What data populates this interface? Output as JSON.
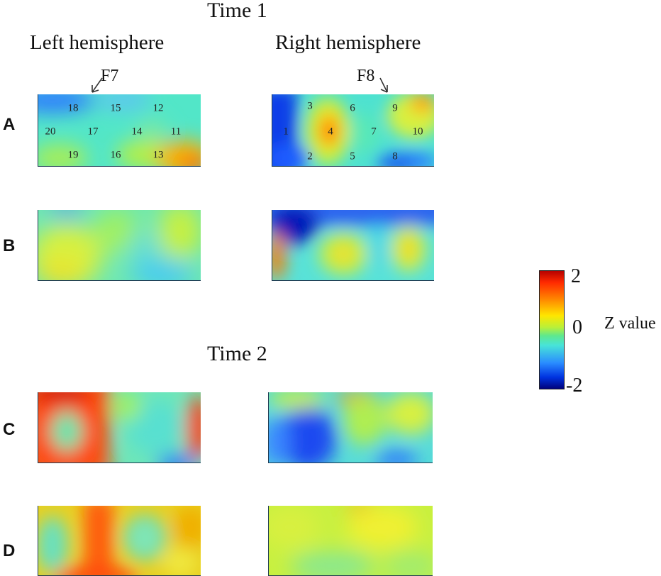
{
  "headings": {
    "time1": "Time 1",
    "time2": "Time 2",
    "left": "Left hemisphere",
    "right": "Right hemisphere"
  },
  "rows": [
    "A",
    "B",
    "C",
    "D"
  ],
  "markers": {
    "f7": "F7",
    "f8": "F8"
  },
  "electrodes": {
    "left": [
      "18",
      "15",
      "12",
      "20",
      "17",
      "14",
      "11",
      "19",
      "16",
      "13"
    ],
    "right": [
      "3",
      "6",
      "9",
      "1",
      "4",
      "7",
      "10",
      "2",
      "5",
      "8"
    ]
  },
  "colorbar": {
    "max": "2",
    "mid": "0",
    "min": "-2",
    "label": "Z value",
    "colors": [
      "#b30000",
      "#ff2a00",
      "#ff8c00",
      "#ffe600",
      "#b8f03a",
      "#5ee88e",
      "#48e4d8",
      "#2a8cff",
      "#0033e0",
      "#00007a"
    ]
  }
}
